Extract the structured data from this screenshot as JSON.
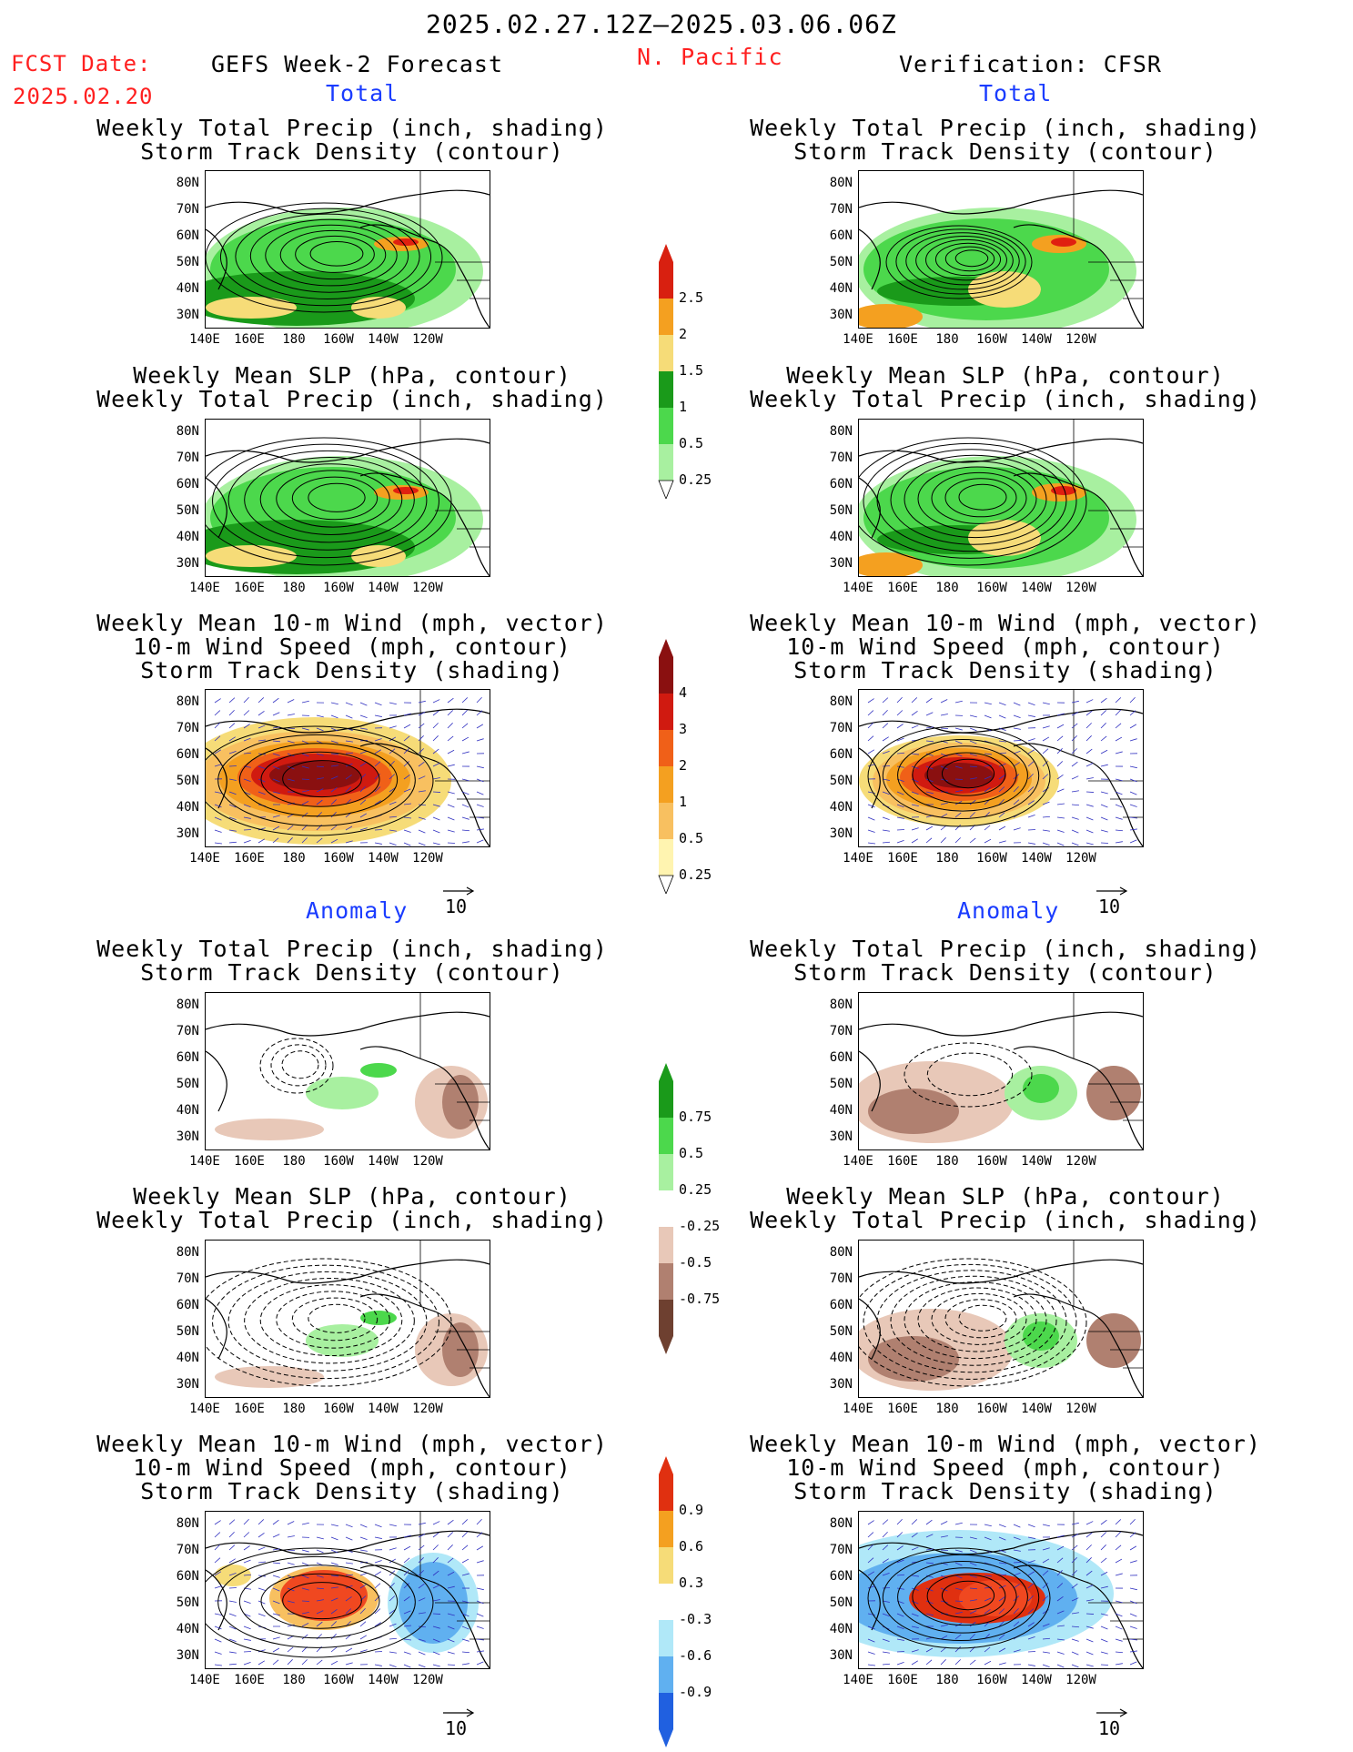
{
  "header": {
    "period": "2025.02.27.12Z–2025.03.06.06Z",
    "fcst_label": "FCST Date:",
    "fcst_date": "2025.02.20",
    "left_title": "GEFS Week-2 Forecast",
    "region": "N. Pacific",
    "right_title": "Verification: CFSR"
  },
  "sections": {
    "total": "Total",
    "anomaly": "Anomaly"
  },
  "panel_titles": {
    "precip_track": "Weekly Total Precip (inch, shading)\nStorm Track Density (contour)",
    "slp_precip": "Weekly Mean SLP (hPa, contour)\nWeekly Total Precip (inch, shading)",
    "wind_track": "Weekly Mean 10-m Wind (mph, vector)\n10-m Wind Speed (mph, contour)\nStorm Track Density (shading)"
  },
  "axes": {
    "lat_ticks": [
      "80N",
      "70N",
      "60N",
      "50N",
      "40N",
      "30N"
    ],
    "lon_ticks": [
      "140E",
      "160E",
      "180",
      "160W",
      "140W",
      "120W"
    ]
  },
  "vector_ref": "10",
  "colorbars": {
    "precip_total": [
      "2.5",
      "2",
      "1.5",
      "1",
      "0.5",
      "0.25"
    ],
    "track_total": [
      "4",
      "3",
      "2",
      "1",
      "0.5",
      "0.25"
    ],
    "precip_anom": [
      "0.75",
      "0.5",
      "0.25",
      "-0.25",
      "-0.5",
      "-0.75"
    ],
    "track_anom": [
      "0.9",
      "0.6",
      "0.3",
      "-0.3",
      "-0.6",
      "-0.9"
    ]
  },
  "colors": {
    "red_text": "#ff2020",
    "blue_text": "#1a3cff",
    "precip_light": "#a8f0a0",
    "precip_mid": "#4cd84c",
    "precip_dark": "#1a9a1a",
    "precip_yellow": "#f6dc78",
    "precip_orange": "#f4a020",
    "precip_red": "#e02010",
    "brown_light": "#e8c8b8",
    "brown_mid": "#b08070",
    "brown_dark": "#6e4030",
    "blue_light": "#b0e8f8",
    "blue_mid": "#60b0f0",
    "blue_dark": "#2060e0"
  }
}
